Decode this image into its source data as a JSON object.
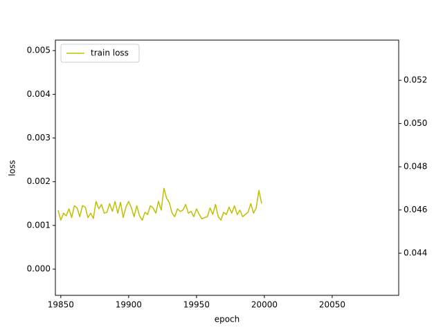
{
  "chart_data": {
    "type": "line",
    "xlabel": "epoch",
    "ylabel": "loss",
    "x": [
      19848,
      19850,
      19852,
      19854,
      19856,
      19858,
      19860,
      19862,
      19864,
      19866,
      19868,
      19870,
      19872,
      19874,
      19876,
      19878,
      19880,
      19882,
      19884,
      19886,
      19888,
      19890,
      19892,
      19894,
      19896,
      19898,
      19900,
      19902,
      19904,
      19906,
      19908,
      19910,
      19912,
      19914,
      19916,
      19918,
      19920,
      19922,
      19924,
      19926,
      19928,
      19930,
      19932,
      19934,
      19936,
      19938,
      19940,
      19942,
      19944,
      19946,
      19948,
      19950,
      19952,
      19954,
      19956,
      19958,
      19960,
      19962,
      19964,
      19966,
      19968,
      19970,
      19972,
      19974,
      19976,
      19978,
      19980,
      19982,
      19984,
      19986,
      19988,
      19990,
      19992,
      19994,
      19996,
      19998
    ],
    "series": [
      {
        "name": "train loss",
        "color": "#bfbf00",
        "values": [
          0.00135,
          0.00112,
          0.00128,
          0.00122,
          0.00138,
          0.00118,
          0.00145,
          0.0014,
          0.0012,
          0.00145,
          0.00142,
          0.00118,
          0.00128,
          0.00116,
          0.00155,
          0.00138,
          0.00148,
          0.00128,
          0.0013,
          0.0015,
          0.00132,
          0.00155,
          0.00128,
          0.00153,
          0.00118,
          0.00142,
          0.00155,
          0.0014,
          0.0012,
          0.00145,
          0.00122,
          0.00112,
          0.0013,
          0.00125,
          0.00145,
          0.0014,
          0.00128,
          0.00155,
          0.00135,
          0.00185,
          0.00162,
          0.00152,
          0.00128,
          0.0012,
          0.00138,
          0.00132,
          0.00135,
          0.00148,
          0.00128,
          0.00132,
          0.0012,
          0.00138,
          0.00125,
          0.00115,
          0.00118,
          0.0012,
          0.0014,
          0.00125,
          0.00148,
          0.0012,
          0.00112,
          0.0013,
          0.00125,
          0.00142,
          0.00128,
          0.00145,
          0.00125,
          0.00135,
          0.0012,
          0.00125,
          0.0013,
          0.0015,
          0.00128,
          0.0014,
          0.0018,
          0.0015
        ]
      }
    ],
    "xlim": [
      19846,
      20099
    ],
    "xticks": [
      19850,
      19900,
      19950,
      20000,
      20050
    ],
    "ylim": [
      -0.0006,
      0.00524
    ],
    "yticks": [
      {
        "value": 0,
        "label": "0.000"
      },
      0.001,
      0.002,
      0.003,
      0.004,
      0.005
    ],
    "y2lim": [
      0.04205,
      0.05386
    ],
    "y2ticks": [
      0.044,
      0.046,
      0.048,
      {
        "value": 0.05,
        "label": "0.050"
      },
      0.052
    ],
    "legend": "upper left",
    "grid": false
  }
}
